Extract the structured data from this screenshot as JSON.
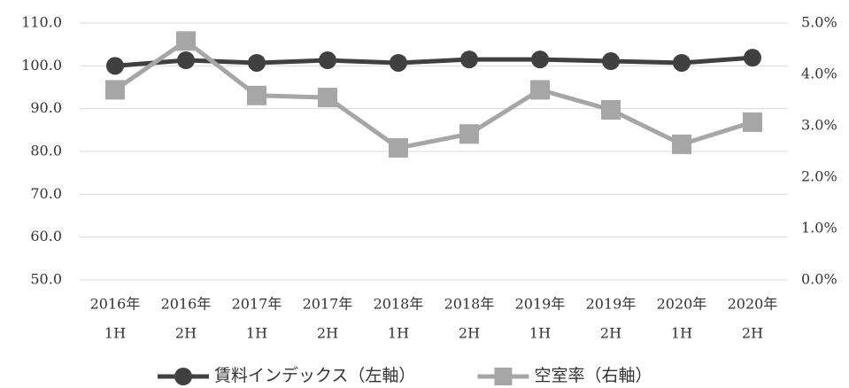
{
  "chart_data": {
    "type": "line",
    "categories": [
      [
        "2016年",
        "1H"
      ],
      [
        "2016年",
        "2H"
      ],
      [
        "2017年",
        "1H"
      ],
      [
        "2017年",
        "2H"
      ],
      [
        "2018年",
        "1H"
      ],
      [
        "2018年",
        "2H"
      ],
      [
        "2019年",
        "1H"
      ],
      [
        "2019年",
        "2H"
      ],
      [
        "2020年",
        "1H"
      ],
      [
        "2020年",
        "2H"
      ]
    ],
    "series": [
      {
        "name": "賃料インデックス（左軸）",
        "color": "#404040",
        "marker": "circle",
        "values": [
          100.0,
          101.3,
          100.7,
          101.3,
          100.7,
          101.5,
          101.5,
          101.1,
          100.7,
          101.9
        ]
      },
      {
        "name": "空室率（右軸）",
        "color": "#a6a6a6",
        "marker": "square",
        "axis": "y2",
        "values": [
          3.7,
          4.65,
          3.59,
          3.55,
          2.57,
          2.84,
          3.7,
          3.31,
          2.64,
          3.07
        ]
      }
    ],
    "ylim": [
      50,
      110
    ],
    "yticks": [
      {
        "value": 50,
        "label": "50.0"
      },
      {
        "value": 60,
        "label": "60.0"
      },
      {
        "value": 70,
        "label": "70.0"
      },
      {
        "value": 80,
        "label": "80.0"
      },
      {
        "value": 90,
        "label": "90.0"
      },
      {
        "value": 100,
        "label": "100.0"
      },
      {
        "value": 110,
        "label": "110.0"
      }
    ],
    "y2lim": [
      0,
      5
    ],
    "y2ticks": [
      {
        "value": 0,
        "label": "0.0%"
      },
      {
        "value": 1,
        "label": "1.0%"
      },
      {
        "value": 2,
        "label": "2.0%"
      },
      {
        "value": 3,
        "label": "3.0%"
      },
      {
        "value": 4,
        "label": "4.0%"
      },
      {
        "value": 5,
        "label": "5.0%"
      }
    ],
    "grid": true,
    "legend": "bottom"
  }
}
